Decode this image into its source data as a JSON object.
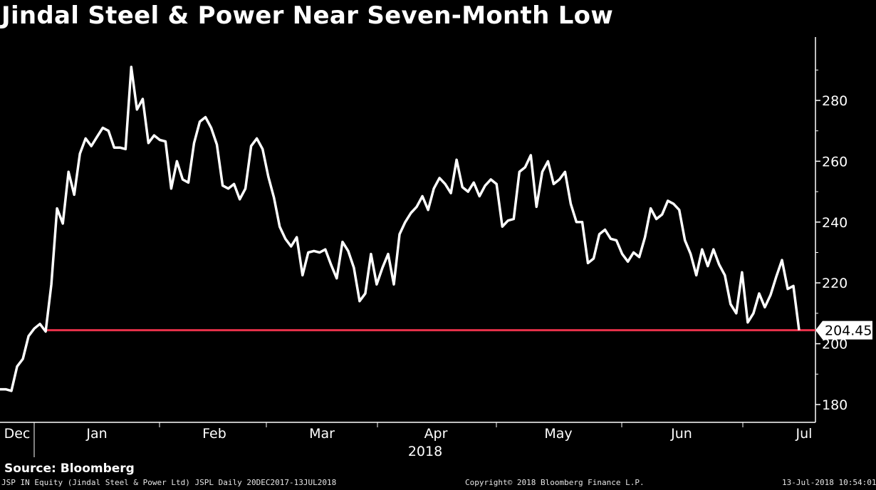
{
  "title": "Jindal Steel & Power Near Seven-Month Low",
  "source": "Source: Bloomberg",
  "footer": {
    "ticker_info": "JSP IN Equity (Jindal Steel & Power Ltd) JSPL  Daily 20DEC2017-13JUL2018",
    "copyright": "Copyright© 2018 Bloomberg Finance L.P.",
    "timestamp": "13-Jul-2018 10:54:01"
  },
  "colors": {
    "background": "#000000",
    "line": "#ffffff",
    "reference_line": "#e8314a",
    "label_box": "#ffffff"
  },
  "chart_data": {
    "type": "line",
    "title": "Jindal Steel & Power Near Seven-Month Low",
    "xlabel": "2018",
    "ylabel": "",
    "ylim": [
      176,
      302
    ],
    "yticks": [
      180,
      200,
      220,
      240,
      260,
      280
    ],
    "xticks": [
      "Dec",
      "Jan",
      "Feb",
      "Mar",
      "Apr",
      "May",
      "Jun",
      "Jul"
    ],
    "year_label": "2018",
    "last_value_label": "204.45",
    "reference_line": {
      "value": 204.45
    },
    "series": [
      {
        "values": [
          185,
          185,
          184.5,
          192.5,
          195,
          202.5,
          205,
          206.5,
          204,
          219.5,
          244.5,
          239.5,
          256.5,
          249,
          262.5,
          267.5,
          265,
          268,
          271,
          270,
          264.5,
          264.5,
          264,
          291,
          277,
          280.5,
          266,
          268.5,
          267,
          266.5,
          251,
          260,
          254,
          253,
          266,
          273,
          274.5,
          271,
          265.5,
          252,
          251,
          252.5,
          247.5,
          251,
          265,
          267.5,
          264,
          255,
          248,
          238.5,
          234.5,
          232,
          235,
          222.5,
          230,
          230.5,
          230,
          231,
          226,
          221.5,
          233.5,
          230.5,
          225,
          214,
          216.5,
          229.5,
          219.5,
          225,
          229.5,
          219.5,
          236,
          240,
          243,
          245,
          248.5,
          244,
          251,
          254.5,
          252.5,
          249.5,
          260.5,
          251.5,
          250,
          253,
          248.5,
          252,
          254,
          252.5,
          238.5,
          240.5,
          241,
          256.5,
          258,
          262,
          245,
          256.5,
          260,
          252.5,
          254,
          256.5,
          246,
          240,
          240,
          226.5,
          228,
          236,
          237.5,
          234.5,
          234,
          229.5,
          227,
          230,
          228.5,
          235,
          244.5,
          241,
          242.5,
          247,
          246,
          244,
          234,
          229.5,
          222.5,
          231,
          225.5,
          231,
          226,
          222.5,
          213,
          210,
          223.5,
          207,
          210,
          216.5,
          212,
          216,
          222,
          227.5,
          218,
          219,
          204.45
        ]
      }
    ]
  }
}
